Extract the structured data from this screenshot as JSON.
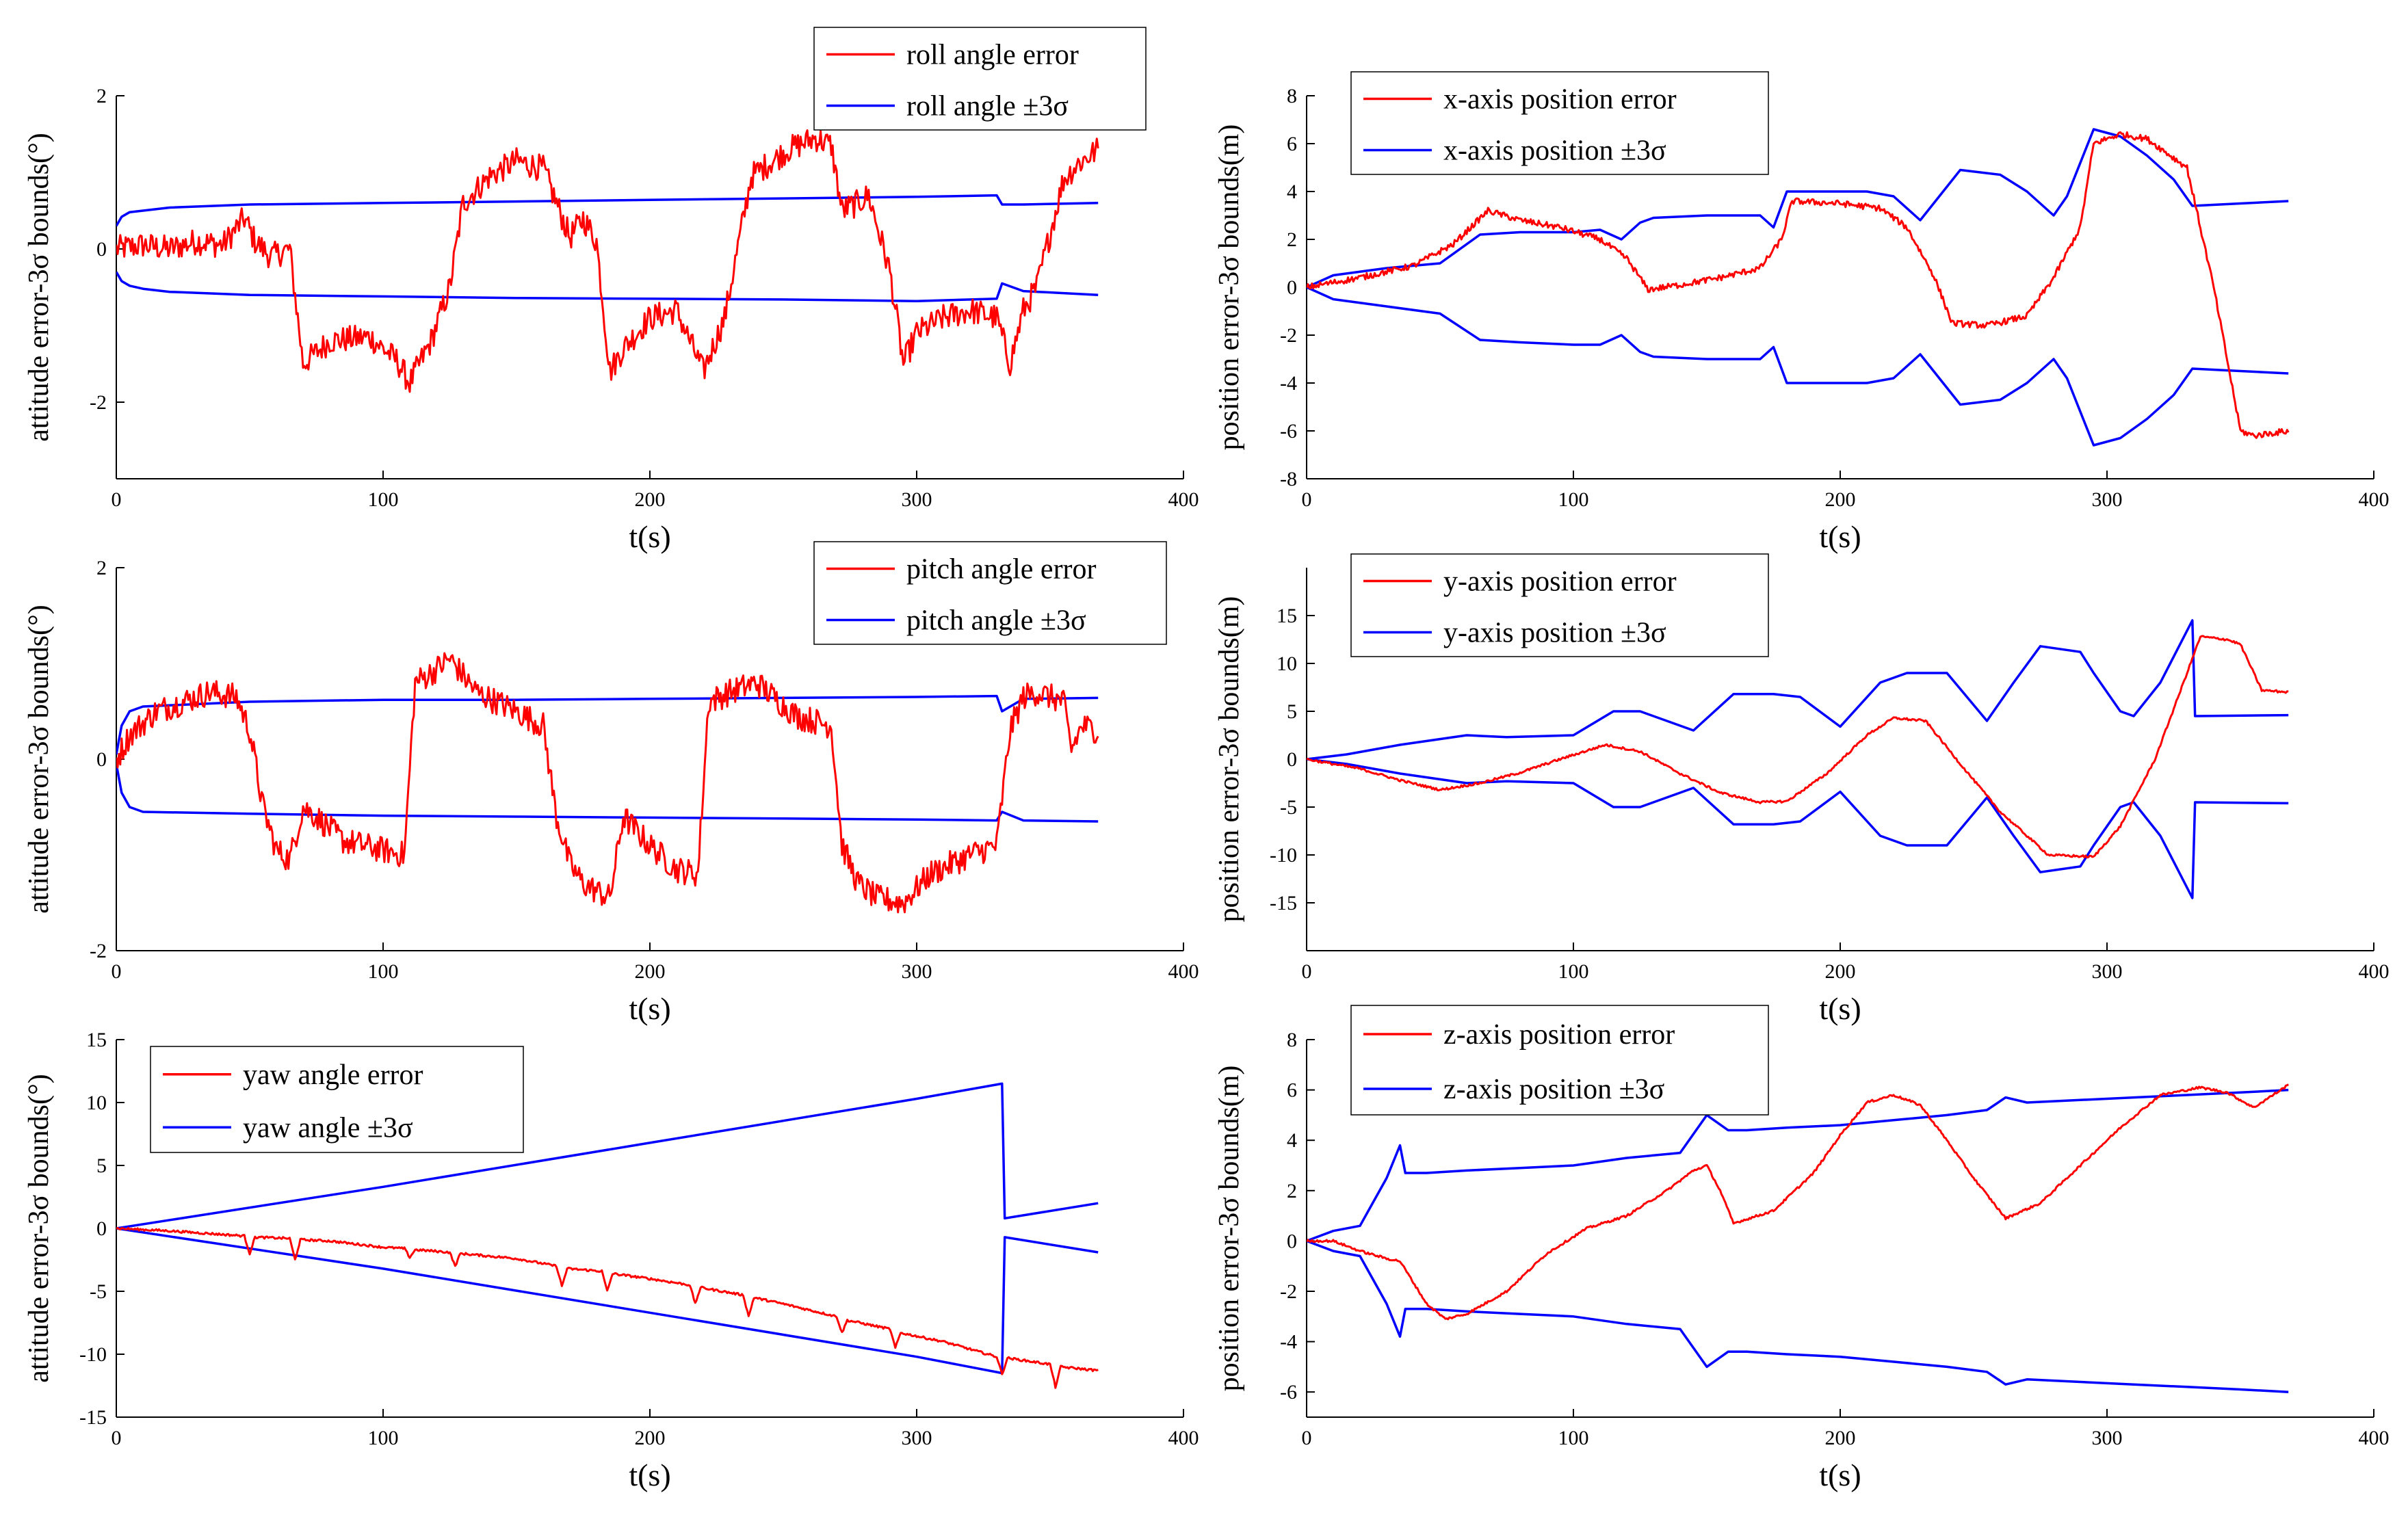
{
  "colors": {
    "error": "#ff0000",
    "bound": "#0000ff",
    "axis": "#000000"
  },
  "chart_data": [
    {
      "id": "roll",
      "type": "line",
      "xlabel": "t(s)",
      "ylabel": "attitude error-3σ bounds(°)",
      "xlim": [
        0,
        400
      ],
      "ylim": [
        -3,
        2
      ],
      "xticks": [
        0,
        100,
        200,
        300,
        400
      ],
      "yticks": [
        -2,
        0,
        2
      ],
      "legend": {
        "position": "top-right",
        "entries": [
          "roll angle error",
          "roll angle ±3σ"
        ]
      },
      "error": {
        "name": "roll angle error",
        "x": [
          0,
          10,
          20,
          30,
          40,
          48,
          52,
          58,
          65,
          70,
          80,
          95,
          105,
          110,
          118,
          125,
          130,
          140,
          150,
          160,
          170,
          175,
          180,
          185,
          190,
          200,
          210,
          220,
          228,
          238,
          242,
          252,
          262,
          268,
          272,
          278,
          282,
          290,
          295,
          300,
          310,
          320,
          330,
          335,
          340,
          345,
          350,
          355,
          360,
          368
        ],
        "y": [
          0,
          0.05,
          0.0,
          0.1,
          0.05,
          0.4,
          0.1,
          -0.1,
          0,
          -1.5,
          -1.2,
          -1.15,
          -1.45,
          -1.75,
          -1.2,
          -0.5,
          0.6,
          0.95,
          1.15,
          1.05,
          0.15,
          0.4,
          0.1,
          -1.6,
          -1.3,
          -0.9,
          -0.8,
          -1.6,
          -0.9,
          0.95,
          1.05,
          1.3,
          1.45,
          1.35,
          0.5,
          0.6,
          0.7,
          -0.3,
          -1.5,
          -1.1,
          -0.9,
          -0.8,
          -0.9,
          -1.5,
          -0.8,
          -0.5,
          0.2,
          0.9,
          1.1,
          1.3
        ]
      },
      "upper": {
        "name": "roll angle ±3σ",
        "x": [
          0,
          2,
          5,
          10,
          20,
          50,
          100,
          150,
          200,
          250,
          300,
          330,
          332,
          340,
          368
        ],
        "y": [
          0.3,
          0.42,
          0.48,
          0.5,
          0.54,
          0.58,
          0.6,
          0.62,
          0.64,
          0.66,
          0.68,
          0.7,
          0.58,
          0.58,
          0.6
        ]
      },
      "lower": {
        "x": [
          0,
          2,
          5,
          10,
          20,
          50,
          100,
          150,
          200,
          250,
          300,
          330,
          332,
          340,
          368
        ],
        "y": [
          -0.3,
          -0.42,
          -0.48,
          -0.52,
          -0.56,
          -0.6,
          -0.62,
          -0.64,
          -0.65,
          -0.66,
          -0.68,
          -0.65,
          -0.45,
          -0.55,
          -0.6
        ]
      }
    },
    {
      "id": "pitch",
      "type": "line",
      "xlabel": "t(s)",
      "ylabel": "attitude error-3σ bounds(°)",
      "xlim": [
        0,
        400
      ],
      "ylim": [
        -2,
        2
      ],
      "xticks": [
        0,
        100,
        200,
        300,
        400
      ],
      "yticks": [
        -2,
        0,
        2
      ],
      "legend": {
        "position": "top-right",
        "entries": [
          "pitch angle error",
          "pitch angle ±3σ"
        ]
      },
      "error": {
        "name": "pitch angle error",
        "x": [
          0,
          5,
          15,
          25,
          35,
          45,
          50,
          55,
          60,
          65,
          70,
          75,
          85,
          100,
          108,
          112,
          118,
          125,
          135,
          150,
          160,
          165,
          170,
          175,
          185,
          190,
          200,
          210,
          218,
          222,
          230,
          240,
          255,
          268,
          272,
          278,
          285,
          295,
          305,
          320,
          330,
          335,
          340,
          345,
          355,
          358,
          362,
          368
        ],
        "y": [
          0,
          0.25,
          0.5,
          0.6,
          0.7,
          0.65,
          0.3,
          -0.5,
          -0.95,
          -1.05,
          -0.5,
          -0.6,
          -0.85,
          -0.95,
          -1.0,
          0.8,
          0.9,
          1.05,
          0.7,
          0.5,
          0.35,
          -0.6,
          -1.1,
          -1.3,
          -1.45,
          -0.6,
          -0.9,
          -1.15,
          -1.2,
          0.6,
          0.7,
          0.8,
          0.45,
          0.35,
          -0.9,
          -1.3,
          -1.45,
          -1.5,
          -1.2,
          -1.0,
          -0.9,
          0.3,
          0.65,
          0.7,
          0.6,
          0.1,
          0.35,
          0.3
        ]
      },
      "upper": {
        "name": "pitch angle ±3σ",
        "x": [
          0,
          2,
          5,
          10,
          50,
          100,
          150,
          200,
          250,
          300,
          330,
          332,
          340,
          368
        ],
        "y": [
          0.05,
          0.35,
          0.5,
          0.55,
          0.6,
          0.62,
          0.62,
          0.63,
          0.64,
          0.65,
          0.66,
          0.5,
          0.63,
          0.64
        ]
      },
      "lower": {
        "x": [
          0,
          2,
          5,
          10,
          50,
          100,
          150,
          200,
          250,
          300,
          330,
          332,
          340,
          368
        ],
        "y": [
          -0.05,
          -0.35,
          -0.5,
          -0.55,
          -0.57,
          -0.59,
          -0.6,
          -0.61,
          -0.62,
          -0.63,
          -0.64,
          -0.55,
          -0.64,
          -0.65
        ]
      }
    },
    {
      "id": "yaw",
      "type": "line",
      "xlabel": "t(s)",
      "ylabel": "attitude error-3σ bounds(°)",
      "xlim": [
        0,
        400
      ],
      "ylim": [
        -15,
        15
      ],
      "xticks": [
        0,
        100,
        200,
        300,
        400
      ],
      "yticks": [
        -15,
        -10,
        -5,
        0,
        5,
        10,
        15
      ],
      "legend": {
        "position": "top-left",
        "entries": [
          "yaw angle error",
          "yaw angle ±3σ"
        ]
      },
      "error": {
        "name": "yaw angle error",
        "x": [
          0,
          20,
          48,
          50,
          52,
          65,
          67,
          69,
          80,
          100,
          108,
          110,
          112,
          125,
          127,
          129,
          150,
          165,
          167,
          169,
          182,
          184,
          186,
          200,
          215,
          217,
          219,
          235,
          237,
          239,
          250,
          270,
          272,
          274,
          290,
          292,
          294,
          310,
          330,
          332,
          334,
          350,
          352,
          354,
          368
        ],
        "y": [
          0,
          -0.2,
          -0.6,
          -2.0,
          -0.7,
          -0.8,
          -2.5,
          -0.9,
          -1.0,
          -1.5,
          -1.6,
          -2.3,
          -1.7,
          -1.9,
          -3.0,
          -2.0,
          -2.4,
          -3.0,
          -4.6,
          -3.2,
          -3.4,
          -5.0,
          -3.6,
          -4.0,
          -4.5,
          -6.0,
          -4.7,
          -5.3,
          -7.0,
          -5.5,
          -6.0,
          -7.0,
          -8.3,
          -7.3,
          -8.0,
          -9.5,
          -8.3,
          -9.0,
          -10.2,
          -11.6,
          -10.3,
          -10.8,
          -12.6,
          -11.0,
          -11.3
        ]
      },
      "upper": {
        "name": "yaw angle ±3σ",
        "x": [
          0,
          100,
          200,
          300,
          332,
          333,
          368
        ],
        "y": [
          0,
          3.3,
          6.8,
          10.3,
          11.5,
          0.8,
          2.0
        ]
      },
      "lower": {
        "x": [
          0,
          100,
          200,
          300,
          332,
          333,
          368
        ],
        "y": [
          0,
          -3.2,
          -6.7,
          -10.2,
          -11.5,
          -0.7,
          -1.9
        ]
      }
    },
    {
      "id": "xpos",
      "type": "line",
      "xlabel": "t(s)",
      "ylabel": "position error-3σ bounds(m)",
      "xlim": [
        0,
        400
      ],
      "ylim": [
        -8,
        8
      ],
      "xticks": [
        0,
        100,
        200,
        300,
        400
      ],
      "yticks": [
        -8,
        -6,
        -4,
        -2,
        0,
        2,
        4,
        6,
        8
      ],
      "legend": {
        "position": "top-left",
        "entries": [
          "x-axis position error",
          "x-axis position ±3σ"
        ]
      },
      "error": {
        "name": "x-axis position error",
        "x": [
          0,
          20,
          40,
          55,
          68,
          80,
          95,
          110,
          120,
          128,
          140,
          155,
          170,
          178,
          182,
          200,
          215,
          225,
          235,
          242,
          255,
          270,
          280,
          290,
          295,
          305,
          315,
          330,
          340,
          350,
          355,
          368
        ],
        "y": [
          0,
          0.4,
          0.9,
          1.8,
          3.2,
          2.8,
          2.5,
          2.0,
          1.2,
          -0.1,
          0.1,
          0.4,
          0.8,
          2.0,
          3.6,
          3.5,
          3.3,
          2.5,
          0.5,
          -1.5,
          -1.6,
          -1.2,
          0.4,
          2.5,
          6.0,
          6.4,
          6.2,
          5.0,
          0.0,
          -6.0,
          -6.2,
          -6.0
        ]
      },
      "upper": {
        "name": "x-axis position ±3σ",
        "x": [
          0,
          10,
          30,
          50,
          65,
          80,
          100,
          110,
          118,
          125,
          130,
          150,
          170,
          175,
          180,
          200,
          210,
          220,
          230,
          245,
          260,
          270,
          280,
          285,
          295,
          305,
          315,
          325,
          332,
          350,
          368
        ],
        "y": [
          0,
          0.5,
          0.8,
          1.0,
          2.2,
          2.3,
          2.3,
          2.4,
          2.0,
          2.7,
          2.9,
          3.0,
          3.0,
          2.5,
          4.0,
          4.0,
          4.0,
          3.8,
          2.8,
          4.9,
          4.7,
          4.0,
          3.0,
          3.8,
          6.6,
          6.3,
          5.5,
          4.5,
          3.4,
          3.5,
          3.6
        ]
      },
      "lower": {
        "x": [
          0,
          10,
          30,
          50,
          65,
          80,
          100,
          110,
          118,
          125,
          130,
          150,
          170,
          175,
          180,
          200,
          210,
          220,
          230,
          245,
          260,
          270,
          280,
          285,
          295,
          305,
          315,
          325,
          332,
          350,
          368
        ],
        "y": [
          0,
          -0.5,
          -0.8,
          -1.1,
          -2.2,
          -2.3,
          -2.4,
          -2.4,
          -2.0,
          -2.7,
          -2.9,
          -3.0,
          -3.0,
          -2.5,
          -4.0,
          -4.0,
          -4.0,
          -3.8,
          -2.8,
          -4.9,
          -4.7,
          -4.0,
          -3.0,
          -3.8,
          -6.6,
          -6.3,
          -5.5,
          -4.5,
          -3.4,
          -3.5,
          -3.6
        ]
      }
    },
    {
      "id": "ypos",
      "type": "line",
      "xlabel": "t(s)",
      "ylabel": "position error-3σ bounds(m)",
      "xlim": [
        0,
        400
      ],
      "ylim": [
        -20,
        20
      ],
      "xticks": [
        0,
        100,
        200,
        300,
        400
      ],
      "yticks": [
        -15,
        -10,
        -5,
        0,
        5,
        10,
        15
      ],
      "legend": {
        "position": "top-left",
        "entries": [
          "y-axis position error",
          "y-axis position ±3σ"
        ]
      },
      "error": {
        "name": "y-axis position error",
        "x": [
          0,
          20,
          35,
          50,
          65,
          80,
          95,
          112,
          125,
          140,
          155,
          170,
          180,
          195,
          210,
          220,
          232,
          245,
          260,
          278,
          295,
          305,
          318,
          330,
          335,
          345,
          350,
          358,
          368
        ],
        "y": [
          0,
          -1.0,
          -2.2,
          -3.2,
          -2.5,
          -1.4,
          0.0,
          1.5,
          0.8,
          -1.5,
          -3.5,
          -4.5,
          -4.4,
          -1.5,
          2.5,
          4.3,
          4.0,
          -0.5,
          -5.5,
          -10.0,
          -10.2,
          -7.0,
          0.0,
          9.0,
          12.8,
          12.5,
          12.0,
          7.2,
          7.0
        ]
      },
      "upper": {
        "name": "y-axis position ±3σ",
        "x": [
          0,
          15,
          35,
          60,
          75,
          100,
          115,
          125,
          145,
          160,
          175,
          185,
          200,
          215,
          225,
          240,
          255,
          265,
          275,
          290,
          295,
          305,
          310,
          320,
          332,
          333,
          368
        ],
        "y": [
          0,
          0.5,
          1.5,
          2.5,
          2.3,
          2.5,
          5.0,
          5.0,
          3.0,
          6.8,
          6.8,
          6.5,
          3.4,
          8.0,
          9.0,
          9.0,
          4.0,
          8.0,
          11.8,
          11.2,
          9.0,
          5.0,
          4.5,
          8.0,
          14.5,
          4.5,
          4.6
        ]
      },
      "lower": {
        "x": [
          0,
          15,
          35,
          60,
          75,
          100,
          115,
          125,
          145,
          160,
          175,
          185,
          200,
          215,
          225,
          240,
          255,
          265,
          275,
          290,
          295,
          305,
          310,
          320,
          332,
          333,
          368
        ],
        "y": [
          0,
          -0.5,
          -1.5,
          -2.5,
          -2.3,
          -2.5,
          -5.0,
          -5.0,
          -3.0,
          -6.8,
          -6.8,
          -6.5,
          -3.4,
          -8.0,
          -9.0,
          -9.0,
          -4.0,
          -8.0,
          -11.8,
          -11.2,
          -9.0,
          -5.0,
          -4.5,
          -8.0,
          -14.5,
          -4.5,
          -4.6
        ]
      }
    },
    {
      "id": "zpos",
      "type": "line",
      "xlabel": "t(s)",
      "ylabel": "position error-3σ bounds(m)",
      "xlim": [
        0,
        400
      ],
      "ylim": [
        -7,
        8
      ],
      "xticks": [
        0,
        100,
        200,
        300,
        400
      ],
      "yticks": [
        -6,
        -4,
        -2,
        0,
        2,
        4,
        6,
        8
      ],
      "legend": {
        "position": "top-left",
        "entries": [
          "z-axis position error",
          "z-axis position ±3σ"
        ]
      },
      "error": {
        "name": "z-axis position error",
        "x": [
          0,
          10,
          20,
          30,
          35,
          45,
          52,
          60,
          75,
          90,
          105,
          120,
          135,
          145,
          150,
          155,
          160,
          175,
          190,
          200,
          210,
          220,
          230,
          240,
          250,
          262,
          275,
          290,
          305,
          320,
          335,
          345,
          355,
          368
        ],
        "y": [
          0,
          0,
          -0.4,
          -0.7,
          -0.8,
          -2.5,
          -3.1,
          -2.9,
          -2.0,
          -0.5,
          0.5,
          1.0,
          2.0,
          2.8,
          3.0,
          2.0,
          0.7,
          1.2,
          2.7,
          4.2,
          5.5,
          5.8,
          5.4,
          4.0,
          2.5,
          0.9,
          1.5,
          3.0,
          4.5,
          5.8,
          6.1,
          5.9,
          5.3,
          6.2
        ]
      },
      "upper": {
        "name": "z-axis position ±3σ",
        "x": [
          0,
          5,
          10,
          20,
          30,
          35,
          37,
          45,
          60,
          80,
          100,
          120,
          140,
          150,
          158,
          165,
          180,
          200,
          220,
          240,
          255,
          262,
          270,
          290,
          310,
          330,
          350,
          368
        ],
        "y": [
          0.0,
          0.2,
          0.4,
          0.6,
          2.5,
          3.8,
          2.7,
          2.7,
          2.8,
          2.9,
          3.0,
          3.3,
          3.5,
          5.0,
          4.4,
          4.4,
          4.5,
          4.6,
          4.8,
          5.0,
          5.2,
          5.7,
          5.5,
          5.6,
          5.7,
          5.8,
          5.9,
          6.0
        ]
      },
      "lower": {
        "x": [
          0,
          5,
          10,
          20,
          30,
          35,
          37,
          45,
          60,
          80,
          100,
          120,
          140,
          150,
          158,
          165,
          180,
          200,
          220,
          240,
          255,
          262,
          270,
          290,
          310,
          330,
          350,
          368
        ],
        "y": [
          0.0,
          -0.2,
          -0.4,
          -0.6,
          -2.5,
          -3.8,
          -2.7,
          -2.7,
          -2.8,
          -2.9,
          -3.0,
          -3.3,
          -3.5,
          -5.0,
          -4.4,
          -4.4,
          -4.5,
          -4.6,
          -4.8,
          -5.0,
          -5.2,
          -5.7,
          -5.5,
          -5.6,
          -5.7,
          -5.8,
          -5.9,
          -6.0
        ]
      }
    }
  ]
}
